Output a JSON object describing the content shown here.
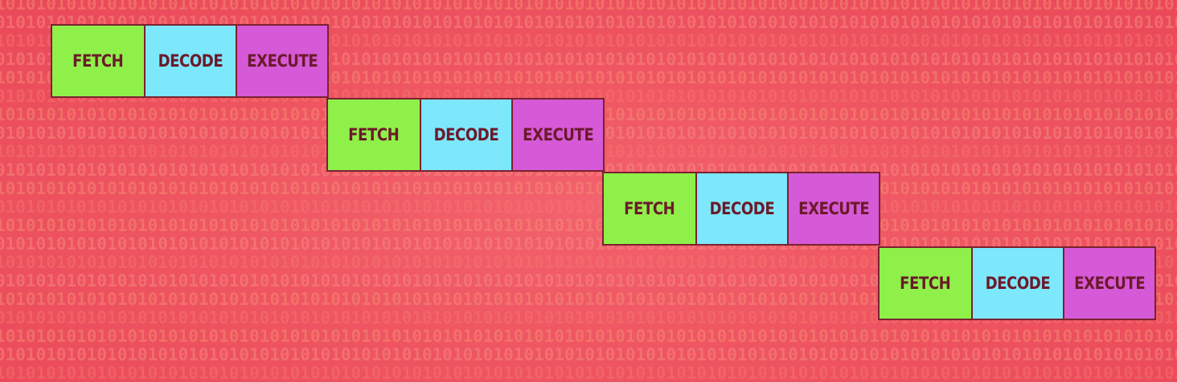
{
  "pipeline": {
    "rows": [
      {
        "fetch": "FETCH",
        "decode": "DECODE",
        "execute": "EXECUTE"
      },
      {
        "fetch": "FETCH",
        "decode": "DECODE",
        "execute": "EXECUTE"
      },
      {
        "fetch": "FETCH",
        "decode": "DECODE",
        "execute": "EXECUTE"
      },
      {
        "fetch": "FETCH",
        "decode": "DECODE",
        "execute": "EXECUTE"
      }
    ]
  },
  "colors": {
    "background": "#ef5662",
    "fetch": "#8ff04a",
    "decode": "#7de7fb",
    "execute": "#d659d7",
    "text": "#6b1a2a",
    "border": "#7a2230"
  },
  "background_pattern": "binary-digits"
}
